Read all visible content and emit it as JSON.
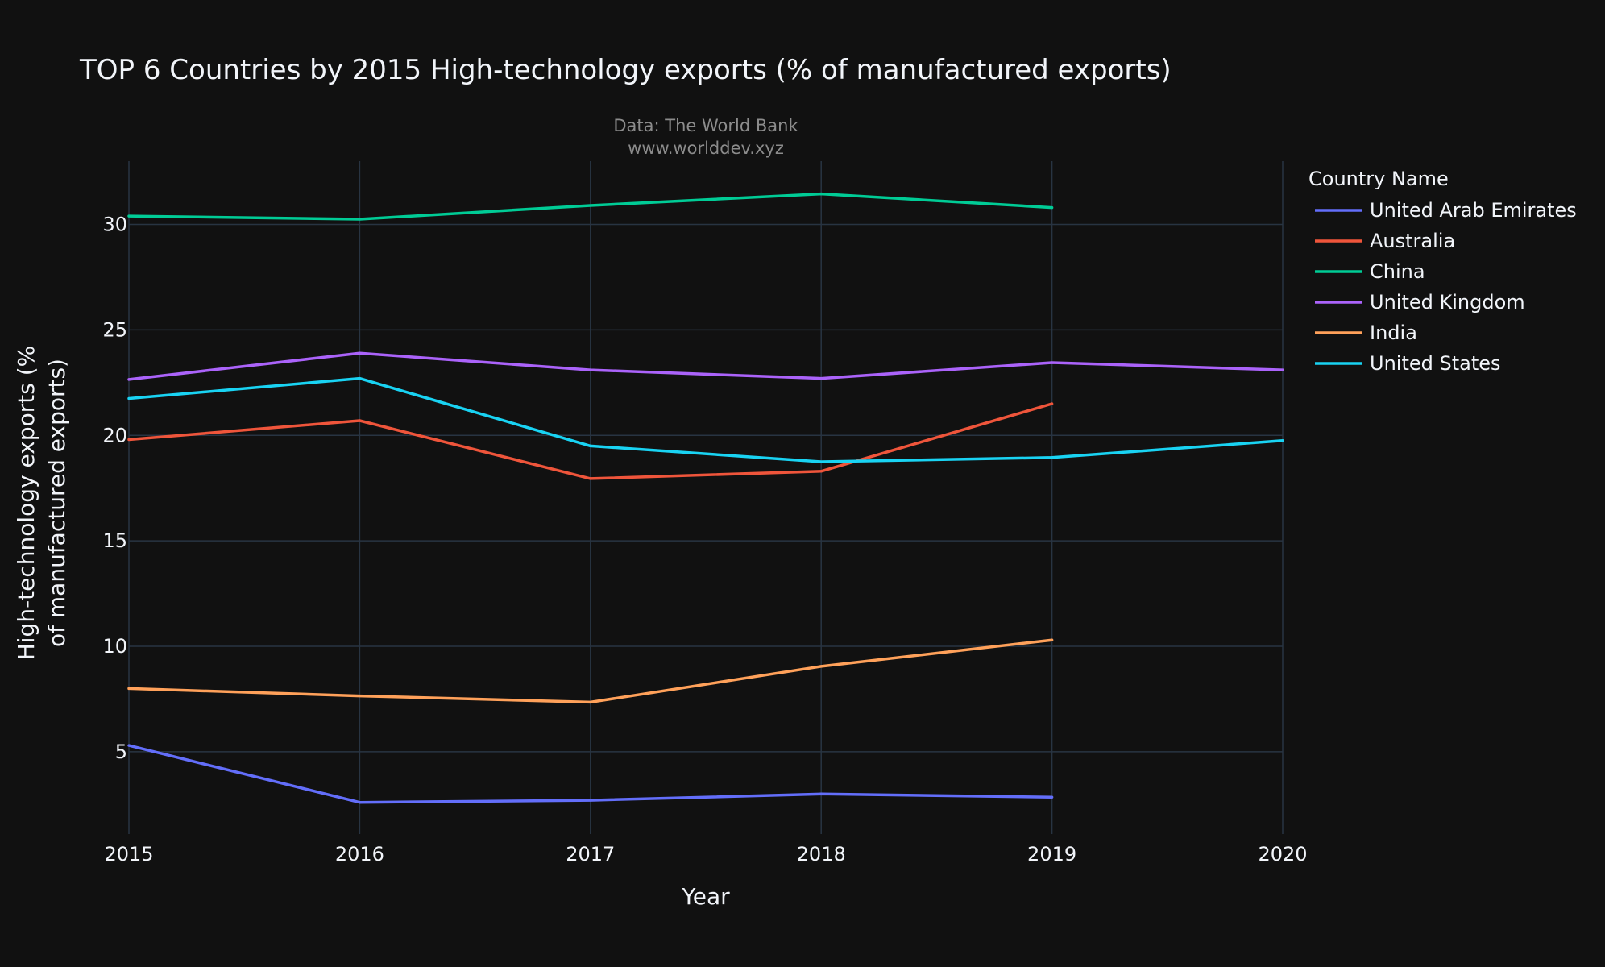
{
  "chart_data": {
    "type": "line",
    "title": "TOP 6 Countries by 2015 High-technology exports (% of manufactured exports)",
    "subtitle_lines": [
      "Data: The World Bank",
      "www.worlddev.xyz"
    ],
    "xlabel": "Year",
    "ylabel_lines": [
      "High-technology exports (%",
      "of manufactured exports)"
    ],
    "x_ticks": [
      2015,
      2016,
      2017,
      2018,
      2019,
      2020
    ],
    "x_tick_labels": [
      "2015",
      "2016",
      "2017",
      "2018",
      "2019",
      "2020"
    ],
    "y_ticks": [
      5,
      10,
      15,
      20,
      25,
      30
    ],
    "y_tick_labels": [
      "5",
      "10",
      "15",
      "20",
      "25",
      "30"
    ],
    "xlim": [
      2015,
      2020
    ],
    "ylim": [
      1.1,
      33.0
    ],
    "grid": true,
    "legend_title": "Country Name",
    "legend_position": "top-right outside plot",
    "colors": {
      "background": "#111111",
      "grid": "#283442",
      "text": "#f2f5fa",
      "subtitle": "#8c8c8c"
    },
    "series": [
      {
        "name": "United Arab Emirates",
        "color": "#636efa",
        "x": [
          2015,
          2016,
          2017,
          2018,
          2019
        ],
        "y": [
          5.3,
          2.6,
          2.7,
          3.0,
          2.85
        ]
      },
      {
        "name": "Australia",
        "color": "#EF553B",
        "x": [
          2015,
          2016,
          2017,
          2018,
          2019
        ],
        "y": [
          19.8,
          20.7,
          17.95,
          18.3,
          21.5
        ]
      },
      {
        "name": "China",
        "color": "#00cc96",
        "x": [
          2015,
          2016,
          2017,
          2018,
          2019
        ],
        "y": [
          30.4,
          30.25,
          30.9,
          31.45,
          30.8
        ]
      },
      {
        "name": "United Kingdom",
        "color": "#ab63fa",
        "x": [
          2015,
          2016,
          2017,
          2018,
          2019,
          2020
        ],
        "y": [
          22.65,
          23.9,
          23.1,
          22.7,
          23.45,
          23.1
        ]
      },
      {
        "name": "India",
        "color": "#FFA15A",
        "x": [
          2015,
          2016,
          2017,
          2018,
          2019
        ],
        "y": [
          8.0,
          7.65,
          7.35,
          9.05,
          10.3
        ]
      },
      {
        "name": "United States",
        "color": "#19d3f3",
        "x": [
          2015,
          2016,
          2017,
          2018,
          2019,
          2020
        ],
        "y": [
          21.75,
          22.7,
          19.5,
          18.75,
          18.95,
          19.75
        ]
      }
    ]
  }
}
